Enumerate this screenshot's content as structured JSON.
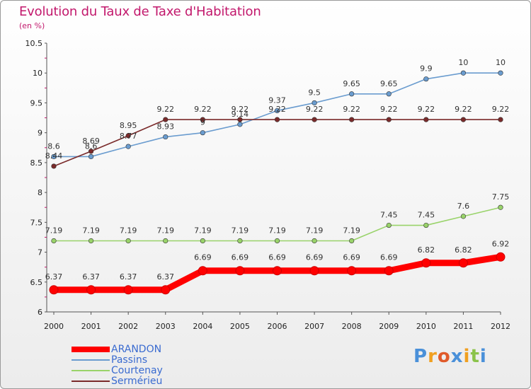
{
  "header": {
    "title": "Evolution du Taux de Taxe d'Habitation",
    "subtitle": "(en %)"
  },
  "logo": {
    "text": "Proxiti"
  },
  "chart_data": {
    "type": "line",
    "title": "Evolution du Taux de Taxe d'Habitation",
    "subtitle": "(en %)",
    "xlabel": "",
    "ylabel": "",
    "x": [
      "2000",
      "2001",
      "2002",
      "2003",
      "2004",
      "2005",
      "2006",
      "2007",
      "2008",
      "2009",
      "2010",
      "2011",
      "2012"
    ],
    "ylim": [
      6,
      10.5
    ],
    "yticks": [
      "6",
      "6.5",
      "7",
      "7.5",
      "8",
      "8.5",
      "9",
      "9.5",
      "10",
      "10.5"
    ],
    "grid": false,
    "legend": "bottom-left",
    "series": [
      {
        "name": "ARANDON",
        "color": "#ff0000",
        "values": [
          6.37,
          6.37,
          6.37,
          6.37,
          6.69,
          6.69,
          6.69,
          6.69,
          6.69,
          6.69,
          6.82,
          6.82,
          6.92
        ],
        "labels": [
          "6.37",
          "6.37",
          "6.37",
          "6.37",
          "6.69",
          "6.69",
          "6.69",
          "6.69",
          "6.69",
          "6.69",
          "6.82",
          "6.82",
          "6.92"
        ]
      },
      {
        "name": "Passins",
        "color": "#6a9ccf",
        "values": [
          8.6,
          8.6,
          8.77,
          8.93,
          9.0,
          9.14,
          9.37,
          9.5,
          9.65,
          9.65,
          9.9,
          10,
          10
        ],
        "labels": [
          "8.6",
          "8.6",
          "8.77",
          "8.93",
          "9",
          "9.14",
          "9.37",
          "9.5",
          "9.65",
          "9.65",
          "9.9",
          "10",
          "10"
        ]
      },
      {
        "name": "Courtenay",
        "color": "#99d36a",
        "values": [
          7.19,
          7.19,
          7.19,
          7.19,
          7.19,
          7.19,
          7.19,
          7.19,
          7.19,
          7.45,
          7.45,
          7.6,
          7.75
        ],
        "labels": [
          "7.19",
          "7.19",
          "7.19",
          "7.19",
          "7.19",
          "7.19",
          "7.19",
          "7.19",
          "7.19",
          "7.45",
          "7.45",
          "7.6",
          "7.75"
        ]
      },
      {
        "name": "Sermérieu",
        "color": "#7a2a2a",
        "values": [
          8.44,
          8.69,
          8.95,
          9.22,
          9.22,
          9.22,
          9.22,
          9.22,
          9.22,
          9.22,
          9.22,
          9.22,
          9.22
        ],
        "labels": [
          "8.44",
          "8.69",
          "8.95",
          "9.22",
          "9.22",
          "9.22",
          "9.22",
          "9.22",
          "9.22",
          "9.22",
          "9.22",
          "9.22",
          "9.22"
        ]
      }
    ]
  }
}
